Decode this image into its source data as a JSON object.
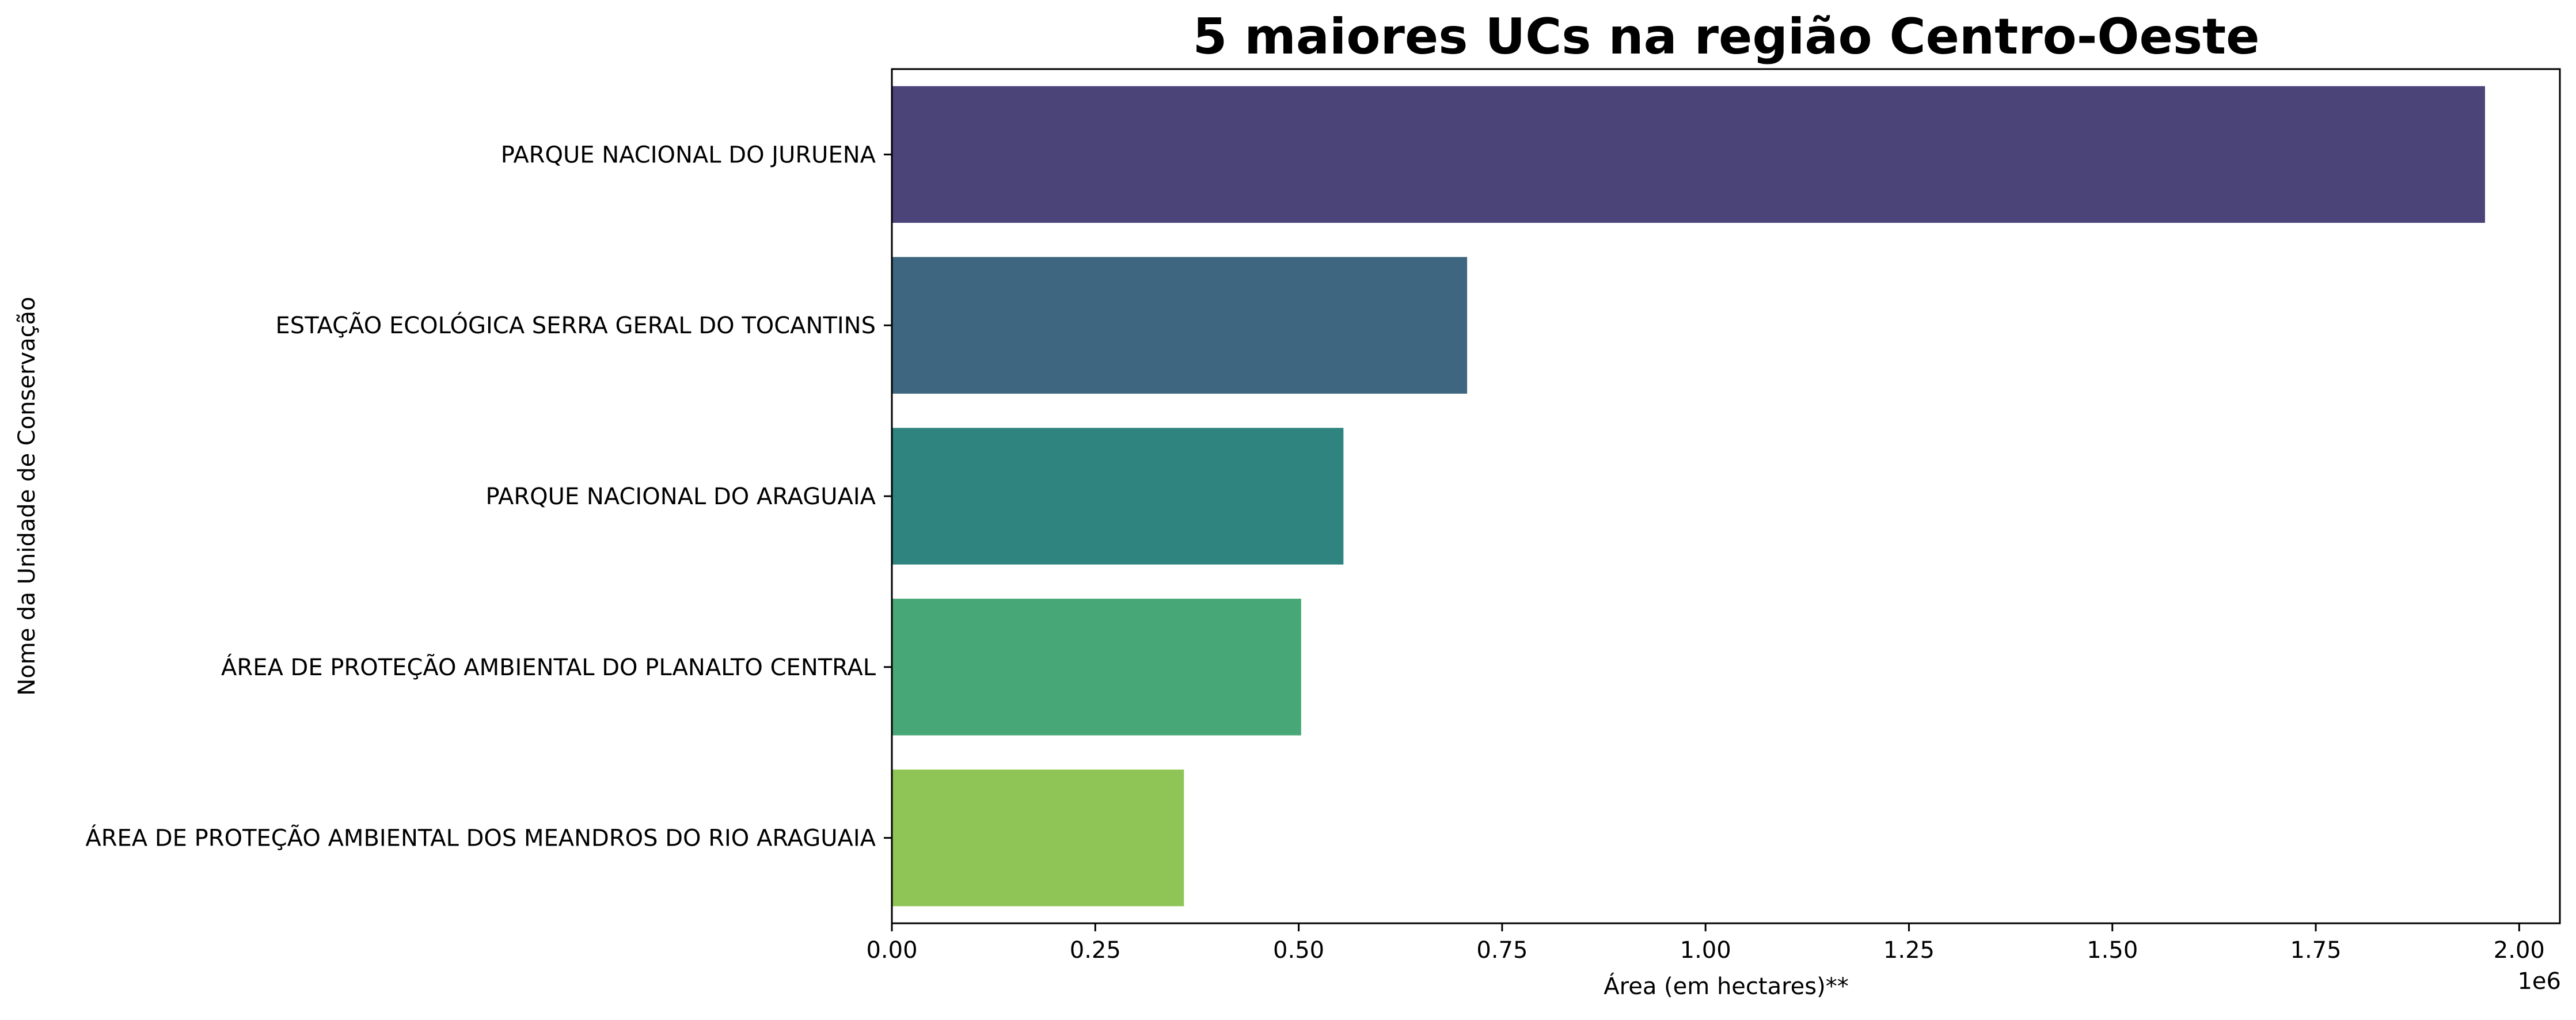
{
  "chart_data": {
    "type": "bar",
    "orientation": "horizontal",
    "title": "5 maiores UCs na região Centro-Oeste",
    "xlabel": "Área (em hectares)**",
    "ylabel": "Nome da Unidade de Conservação",
    "x_offset_label": "1e6",
    "x_scale_factor": 1000000,
    "xlim": [
      0,
      2050000
    ],
    "x_ticks": [
      0,
      250000,
      500000,
      750000,
      1000000,
      1250000,
      1500000,
      1750000,
      2000000
    ],
    "x_tick_labels": [
      "0.00",
      "0.25",
      "0.50",
      "0.75",
      "1.00",
      "1.25",
      "1.50",
      "1.75",
      "2.00"
    ],
    "grid": false,
    "categories": [
      "PARQUE NACIONAL DO JURUENA",
      "ESTAÇÃO ECOLÓGICA SERRA GERAL DO TOCANTINS",
      "PARQUE NACIONAL DO ARAGUAIA",
      "ÁREA DE PROTEÇÃO AMBIENTAL DO PLANALTO CENTRAL",
      "ÁREA DE PROTEÇÃO AMBIENTAL DOS MEANDROS DO RIO ARAGUAIA"
    ],
    "values": [
      1958000,
      707000,
      555000,
      503000,
      359000
    ],
    "colors": [
      "#4b4479",
      "#3e6680",
      "#2f847f",
      "#48a776",
      "#8fc556"
    ]
  }
}
